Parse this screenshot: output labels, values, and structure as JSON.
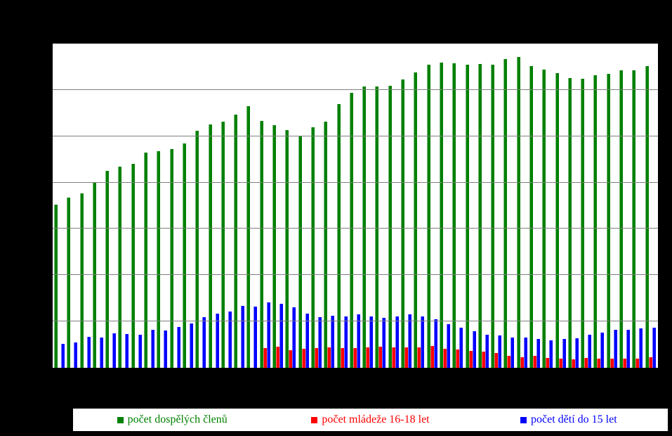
{
  "chart_data": {
    "type": "bar",
    "title": "",
    "n_groups": 47,
    "ylim": [
      0,
      700
    ],
    "gridline_interval": 100,
    "grid": true,
    "x_tick_labels_visible": false,
    "y_tick_labels_visible": false,
    "legend_position": "bottom",
    "series": [
      {
        "name": "počet dospělých členů",
        "color": "#008000",
        "values": [
          352,
          368,
          377,
          400,
          425,
          435,
          441,
          465,
          467,
          473,
          485,
          512,
          525,
          532,
          547,
          565,
          533,
          524,
          514,
          500,
          520,
          532,
          570,
          594,
          608,
          608,
          609,
          622,
          638,
          654,
          659,
          658,
          655,
          656,
          655,
          667,
          671,
          652,
          644,
          637,
          625,
          624,
          631,
          635,
          642,
          642,
          651
        ]
      },
      {
        "name": "počet mládeže 16-18 let",
        "color": "#ff0000",
        "values": [
          0,
          0,
          0,
          0,
          0,
          0,
          0,
          0,
          0,
          0,
          0,
          0,
          0,
          0,
          0,
          0,
          42,
          45,
          38,
          41,
          42,
          44,
          42,
          42,
          44,
          45,
          44,
          44,
          44,
          47,
          41,
          39,
          36,
          35,
          32,
          26,
          23,
          26,
          21,
          20,
          18,
          21,
          20,
          20,
          20,
          20,
          23
        ]
      },
      {
        "name": "počet dětí do 15 let",
        "color": "#0000ff",
        "values": [
          52,
          55,
          67,
          65,
          74,
          73,
          71,
          82,
          80,
          88,
          95,
          109,
          117,
          121,
          133,
          132,
          141,
          138,
          130,
          117,
          109,
          112,
          111,
          115,
          111,
          108,
          111,
          115,
          111,
          105,
          94,
          86,
          79,
          71,
          70,
          65,
          65,
          62,
          59,
          62,
          64,
          71,
          76,
          82,
          82,
          85,
          86
        ]
      }
    ]
  },
  "legend": {
    "entries": [
      {
        "label": "počet dospělých členů",
        "color": "#008000"
      },
      {
        "label": "počet mládeže 16-18 let",
        "color": "#ff0000"
      },
      {
        "label": "počet dětí do 15 let",
        "color": "#0000ff"
      }
    ]
  },
  "colors": {
    "page_background": "#000000",
    "plot_background": "#ffffff",
    "plot_border": "#000000",
    "gridline": "#808080"
  }
}
